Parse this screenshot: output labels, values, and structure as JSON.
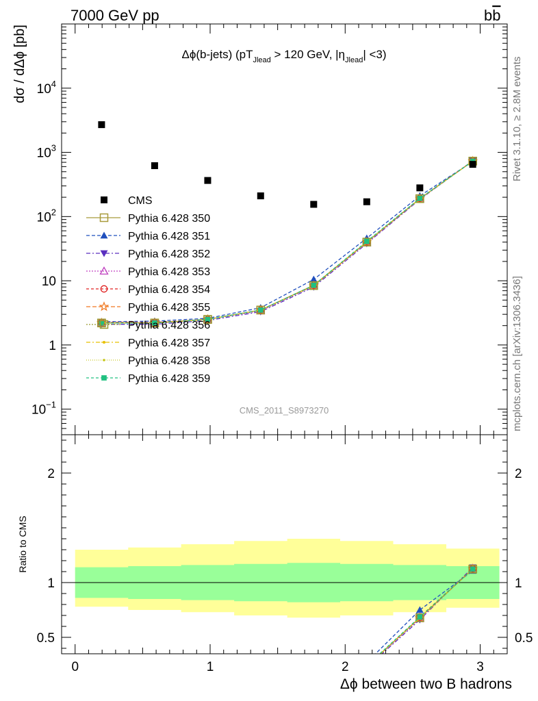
{
  "header": {
    "left": "7000 GeV pp",
    "right_main": "b",
    "right_bar": "b"
  },
  "side_labels": {
    "top": "Rivet 3.1.10, ≥ 2.8M events",
    "bottom": "mcplots.cern.ch [arXiv:1306.3436]"
  },
  "chart_data": {
    "type": "line",
    "title_parts": {
      "a": "Δϕ(b-jets) (pT",
      "a_sub": "Jlead",
      "b": " >  120 GeV, |η",
      "b_sub": "Jlead",
      "c": "| <3)"
    },
    "watermark": "CMS_2011_S8973270",
    "ylabel": "dσ / dΔϕ [pb]",
    "ratio_ylabel": "Ratio to CMS",
    "xlabel": "Δϕ between two B hadrons",
    "xlim": [
      -0.1,
      3.2
    ],
    "ylim_log": [
      0.04,
      100000
    ],
    "ratio_ylim": [
      0.35,
      2.35
    ],
    "x_ticks": [
      "0",
      "1",
      "2",
      "3"
    ],
    "y_ticks": [
      {
        "base": "10",
        "exp": "4",
        "v": 10000
      },
      {
        "base": "10",
        "exp": "3",
        "v": 1000
      },
      {
        "base": "10",
        "exp": "2",
        "v": 100
      },
      {
        "base": "10",
        "exp": "",
        "v": 10
      },
      {
        "base": "1",
        "exp": "",
        "v": 1
      },
      {
        "base": "10",
        "exp": "−1",
        "v": 0.1
      }
    ],
    "ratio_ticks": [
      "0.5",
      "1",
      "2"
    ],
    "x_edges": [
      0,
      0.393,
      0.785,
      1.178,
      1.571,
      1.963,
      2.356,
      2.749,
      3.142
    ],
    "x": [
      0.196,
      0.589,
      0.982,
      1.374,
      1.767,
      2.16,
      2.553,
      2.945
    ],
    "data": {
      "name": "CMS",
      "values": [
        2700,
        620,
        365,
        210,
        155,
        170,
        280,
        650
      ]
    },
    "band_inner": [
      [
        0.86,
        1.14
      ],
      [
        0.85,
        1.15
      ],
      [
        0.84,
        1.16
      ],
      [
        0.83,
        1.17
      ],
      [
        0.82,
        1.18
      ],
      [
        0.83,
        1.17
      ],
      [
        0.84,
        1.16
      ],
      [
        0.85,
        1.15
      ]
    ],
    "band_outer": [
      [
        0.78,
        1.3
      ],
      [
        0.75,
        1.32
      ],
      [
        0.73,
        1.35
      ],
      [
        0.7,
        1.38
      ],
      [
        0.68,
        1.4
      ],
      [
        0.7,
        1.38
      ],
      [
        0.73,
        1.35
      ],
      [
        0.77,
        1.31
      ]
    ],
    "series": [
      {
        "name": "Pythia 6.428 350",
        "color": "#a89a3a",
        "marker": "square-open",
        "dash": "",
        "values": [
          2.2,
          2.2,
          2.5,
          3.5,
          8.5,
          40,
          190,
          730
        ]
      },
      {
        "name": "Pythia 6.428 351",
        "color": "#1f4fbd",
        "marker": "triangle-up",
        "dash": "5,3",
        "values": [
          2.3,
          2.35,
          2.6,
          3.8,
          10.5,
          46,
          210,
          720
        ]
      },
      {
        "name": "Pythia 6.428 352",
        "color": "#5a2fbf",
        "marker": "triangle-down",
        "dash": "6,3,2,3",
        "values": [
          2.1,
          2.1,
          2.4,
          3.3,
          8.0,
          38,
          185,
          740
        ]
      },
      {
        "name": "Pythia 6.428 353",
        "color": "#c040c0",
        "marker": "triangle-open",
        "dash": "2,2",
        "values": [
          2.2,
          2.2,
          2.5,
          3.4,
          8.3,
          39,
          188,
          735
        ]
      },
      {
        "name": "Pythia 6.428 354",
        "color": "#e02020",
        "marker": "circle-open",
        "dash": "4,3",
        "values": [
          2.25,
          2.25,
          2.5,
          3.5,
          8.5,
          40,
          192,
          732
        ]
      },
      {
        "name": "Pythia 6.428 355",
        "color": "#f07820",
        "marker": "star-open",
        "dash": "6,3",
        "values": [
          2.2,
          2.2,
          2.5,
          3.5,
          8.4,
          40,
          190,
          730
        ]
      },
      {
        "name": "Pythia 6.428 356",
        "color": "#9a9a30",
        "marker": "square-open",
        "dash": "2,2",
        "values": [
          2.2,
          2.2,
          2.5,
          3.5,
          8.4,
          40,
          190,
          730
        ]
      },
      {
        "name": "Pythia 6.428 357",
        "color": "#e8c000",
        "marker": "dot-plus",
        "dash": "6,3,2,3",
        "values": [
          2.2,
          2.2,
          2.5,
          3.5,
          8.4,
          40,
          190,
          730
        ]
      },
      {
        "name": "Pythia 6.428 358",
        "color": "#c8c820",
        "marker": "dot",
        "dash": "1,2",
        "values": [
          2.2,
          2.2,
          2.5,
          3.5,
          8.4,
          40,
          190,
          730
        ]
      },
      {
        "name": "Pythia 6.428 359",
        "color": "#20c080",
        "marker": "square-filled",
        "dash": "4,3",
        "values": [
          2.2,
          2.2,
          2.5,
          3.5,
          8.5,
          41,
          192,
          730
        ]
      }
    ]
  }
}
